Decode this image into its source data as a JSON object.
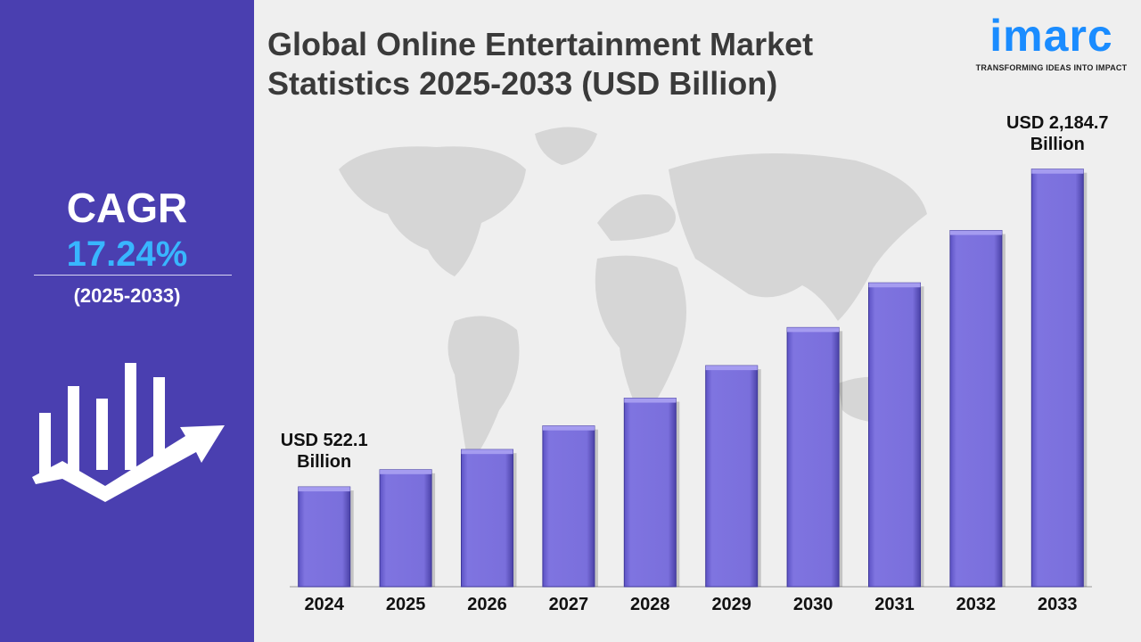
{
  "left_panel": {
    "cagr_label": "CAGR",
    "cagr_value": "17.24%",
    "cagr_period": "(2025-2033)",
    "icon": "growth-bars-arrow-icon"
  },
  "header": {
    "title_line1": "Global Online Entertainment Market",
    "title_line2": "Statistics 2025-2033 (USD Billion)"
  },
  "logo": {
    "text": "imarc",
    "tagline": "TRANSFORMING IDEAS INTO IMPACT"
  },
  "colors": {
    "panel": "#4a3fb0",
    "accent": "#38b6ff",
    "bar": "#7b70dc",
    "logo": "#1a8cff"
  },
  "chart_data": {
    "type": "bar",
    "categories": [
      "2024",
      "2025",
      "2026",
      "2027",
      "2028",
      "2029",
      "2030",
      "2031",
      "2032",
      "2033"
    ],
    "values": [
      522.1,
      612.1,
      717.6,
      841.3,
      986.4,
      1156.5,
      1355.9,
      1589.7,
      1863.8,
      2184.7
    ],
    "annotations": [
      {
        "category": "2024",
        "line1": "USD 522.1",
        "line2": "Billion"
      },
      {
        "category": "2033",
        "line1": "USD 2,184.7",
        "line2": "Billion"
      }
    ],
    "ylim": [
      0,
      2300
    ],
    "grid": false,
    "legend": "none"
  }
}
